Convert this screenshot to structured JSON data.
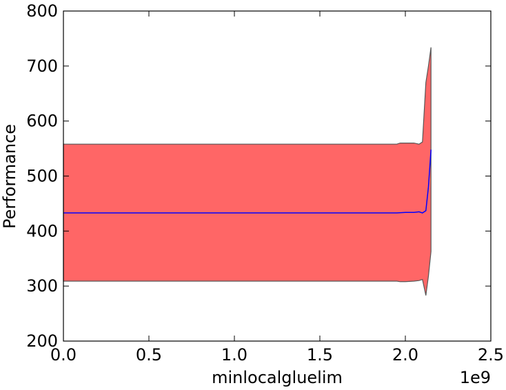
{
  "chart_data": {
    "type": "line",
    "title": "",
    "xlabel": "minlocalgluelim",
    "ylabel": "Performance",
    "x_offset_label": "1e9",
    "xlim": [
      0.0,
      2.5
    ],
    "ylim": [
      200,
      800
    ],
    "x_ticks": [
      "0.0",
      "0.5",
      "1.0",
      "1.5",
      "2.0",
      "2.5"
    ],
    "y_ticks": [
      "200",
      "300",
      "400",
      "500",
      "600",
      "700",
      "800"
    ],
    "grid": false,
    "legend": "none",
    "x_scale_note": "x values in units of 1e9",
    "series": [
      {
        "kind": "line",
        "color": "#0000ff",
        "x": [
          0.0,
          1.95,
          2.0,
          2.05,
          2.08,
          2.1,
          2.12,
          2.135,
          2.15
        ],
        "y": [
          433,
          433,
          434,
          434,
          435,
          433,
          437,
          480,
          548
        ]
      },
      {
        "kind": "band",
        "fill": "#ff6666",
        "edge": "#555555",
        "x": [
          0.0,
          1.95,
          1.97,
          2.0,
          2.05,
          2.08,
          2.1,
          2.12,
          2.135,
          2.15
        ],
        "upper": [
          558,
          558,
          560,
          560,
          560,
          558,
          562,
          670,
          700,
          734
        ],
        "lower": [
          309,
          309,
          308,
          308,
          309,
          310,
          312,
          283,
          318,
          363
        ]
      }
    ]
  }
}
